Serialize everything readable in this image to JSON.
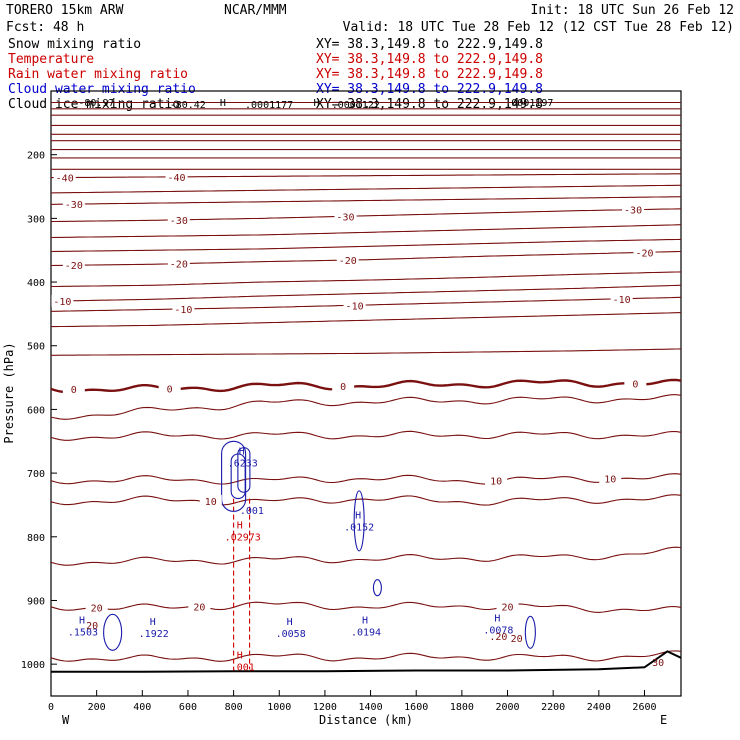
{
  "header": {
    "model": "TORERO  15km ARW",
    "center": "NCAR/MMM",
    "init": "Init: 18 UTC Sun 26 Feb 12",
    "fcst": "Fcst:   48 h",
    "valid": "Valid: 18 UTC Tue 28 Feb 12 (12 CST Tue 28 Feb 12)"
  },
  "legend": [
    {
      "name": "Snow mixing ratio",
      "xy": "XY=  38.3,149.8 to 222.9,149.8",
      "color": "#000000"
    },
    {
      "name": "Temperature",
      "xy": "XY=  38.3,149.8 to 222.9,149.8",
      "color": "#cc0000"
    },
    {
      "name": "Rain water mixing ratio",
      "xy": "XY=  38.3,149.8 to 222.9,149.8",
      "color": "#cc0000"
    },
    {
      "name": "Cloud water mixing ratio",
      "xy": "XY=  38.3,149.8 to 222.9,149.8",
      "color": "#0000cc"
    },
    {
      "name": "Cloud ice mixing ratio",
      "xy": "XY=  38.3,149.8 to 222.9,149.8",
      "color": "#000000"
    }
  ],
  "chart_data": {
    "type": "contour-cross-section",
    "xlabel": "Distance (km)",
    "ylabel": "Pressure (hPa)",
    "xlim": [
      0,
      2760
    ],
    "ylim": [
      1050,
      100
    ],
    "x_ticks": [
      0,
      200,
      400,
      600,
      800,
      1000,
      1200,
      1400,
      1600,
      1800,
      2000,
      2200,
      2400,
      2600
    ],
    "y_ticks": [
      200,
      300,
      400,
      500,
      600,
      700,
      800,
      900,
      1000
    ],
    "x_ends": {
      "left": "W",
      "right": "E"
    },
    "isotherm_color": "#7a1010",
    "zero_isotherm_color": "#7a1010",
    "cloud_color": "#1a1aaa",
    "rain_color": "#cc0000",
    "isotherms": [
      {
        "p": [
          118,
          118,
          118,
          118,
          118,
          118,
          118
        ],
        "label": ""
      },
      {
        "p": [
          128,
          128,
          128,
          128,
          128,
          128,
          128
        ],
        "label": ""
      },
      {
        "p": [
          138,
          138,
          138,
          138,
          138,
          138,
          138
        ],
        "label": ""
      },
      {
        "p": [
          154,
          154,
          154,
          154,
          154,
          154,
          154
        ],
        "label": ""
      },
      {
        "p": [
          168,
          168,
          168,
          168,
          168,
          168,
          168
        ],
        "label": ""
      },
      {
        "p": [
          178,
          178,
          178,
          178,
          178,
          178,
          178
        ],
        "label": ""
      },
      {
        "p": [
          192,
          192,
          192,
          192,
          192,
          192,
          192
        ],
        "label": ""
      },
      {
        "p": [
          205,
          205,
          205,
          205,
          205,
          205,
          205
        ],
        "label": ""
      },
      {
        "p": [
          223,
          223,
          223,
          223,
          223,
          223,
          223
        ],
        "label": ""
      },
      {
        "p": [
          236,
          235,
          234,
          233,
          232,
          231,
          230
        ],
        "label": "-40",
        "labels_x": [
          60,
          550
        ]
      },
      {
        "p": [
          260,
          258,
          256,
          254,
          252,
          250,
          248
        ],
        "label": "-40",
        "labels_x": []
      },
      {
        "p": [
          278,
          276,
          274,
          272,
          270,
          268,
          266
        ],
        "label": "-30",
        "labels_x": [
          -100
        ]
      },
      {
        "p": [
          305,
          303,
          300,
          296,
          292,
          288,
          285
        ],
        "label": "-30",
        "labels_x": [
          560,
          1290,
          2550
        ]
      },
      {
        "p": [
          330,
          328,
          326,
          322,
          318,
          314,
          310
        ],
        "label": "",
        "labels_x": []
      },
      {
        "p": [
          352,
          350,
          348,
          344,
          340,
          336,
          333
        ],
        "label": "",
        "labels_x": []
      },
      {
        "p": [
          374,
          372,
          368,
          365,
          360,
          356,
          352
        ],
        "label": "-20",
        "labels_x": [
          -100,
          560,
          1300,
          2600
        ]
      },
      {
        "p": [
          407,
          405,
          400,
          397,
          393,
          388,
          384
        ],
        "label": "",
        "labels_x": []
      },
      {
        "p": [
          430,
          427,
          422,
          418,
          414,
          410,
          405
        ],
        "label": "-10",
        "labels_x": [
          50
        ]
      },
      {
        "p": [
          446,
          443,
          440,
          436,
          432,
          428,
          424
        ],
        "label": "-10",
        "labels_x": [
          580,
          1330,
          2500
        ]
      },
      {
        "p": [
          470,
          468,
          464,
          460,
          456,
          452,
          448
        ],
        "label": "",
        "labels_x": []
      },
      {
        "p": [
          515,
          514,
          513,
          512,
          510,
          508,
          505
        ],
        "label": "",
        "labels_x": []
      },
      {
        "p": [
          612,
          602,
          590,
          588,
          586,
          584,
          583
        ],
        "label": "",
        "labels_x": []
      },
      {
        "p": [
          644,
          641,
          640,
          641,
          640,
          640,
          641
        ],
        "label": "",
        "labels_x": []
      },
      {
        "p": [
          712,
          710,
          712,
          708,
          712,
          709,
          707
        ],
        "label": "10",
        "labels_x": [
          1950,
          2450
        ]
      },
      {
        "p": [
          745,
          742,
          745,
          740,
          745,
          742,
          740
        ],
        "label": "10",
        "labels_x": [
          700
        ]
      },
      {
        "p": [
          840,
          838,
          836,
          835,
          833,
          832,
          822
        ],
        "label": "",
        "labels_x": []
      },
      {
        "p": [
          910,
          912,
          906,
          910,
          908,
          912,
          916
        ],
        "label": "20",
        "labels_x": [
          200,
          650,
          2000
        ]
      },
      {
        "p": [
          990,
          992,
          988,
          990,
          988,
          990,
          985
        ],
        "label": "",
        "labels_x": []
      }
    ],
    "zero_isotherm": {
      "p": [
        568,
        568,
        563,
        563,
        560,
        558,
        560
      ],
      "label": "0",
      "labels_x": [
        100,
        520,
        1280,
        2560
      ]
    },
    "x_nodes": [
      0,
      460,
      920,
      1380,
      1840,
      2300,
      2760
    ],
    "terrain": {
      "x": [
        0,
        400,
        800,
        1200,
        1600,
        2000,
        2400,
        2600,
        2660,
        2700,
        2760
      ],
      "p": [
        1012,
        1012,
        1011,
        1011,
        1010,
        1010,
        1008,
        1005,
        990,
        980,
        990
      ]
    },
    "top_labels": [
      "-80.97",
      "-80.42",
      "H",
      ".0001177",
      "H",
      ".0001122",
      ".0001197"
    ],
    "cloud_maxima": [
      {
        "x": 140,
        "p": 955,
        "value": ".1503"
      },
      {
        "x": 450,
        "p": 957,
        "value": ".1922"
      },
      {
        "x": 840,
        "p": 690,
        "value": ".6233"
      },
      {
        "x": 1050,
        "p": 957,
        "value": ".0058"
      },
      {
        "x": 1380,
        "p": 955,
        "value": ".0194"
      },
      {
        "x": 1350,
        "p": 790,
        "value": ".0152"
      },
      {
        "x": 1960,
        "p": 952,
        "value": ".0078"
      }
    ],
    "rain_maxima": [
      {
        "x": 840,
        "p": 806,
        "value": ".02973"
      },
      {
        "x": 840,
        "p": 1010,
        "value": ".001"
      }
    ],
    "other_labels": [
      {
        "x": 880,
        "p": 764,
        "text": ".001",
        "series": "cloud"
      },
      {
        "x": 180,
        "p": 945,
        "text": "20",
        "series": "isotherm"
      },
      {
        "x": 1960,
        "p": 962,
        "text": ".20",
        "series": "isotherm"
      },
      {
        "x": 2040,
        "p": 965,
        "text": "20",
        "series": "isotherm"
      },
      {
        "x": 2660,
        "p": 1003,
        "text": "30",
        "series": "isotherm"
      }
    ]
  }
}
